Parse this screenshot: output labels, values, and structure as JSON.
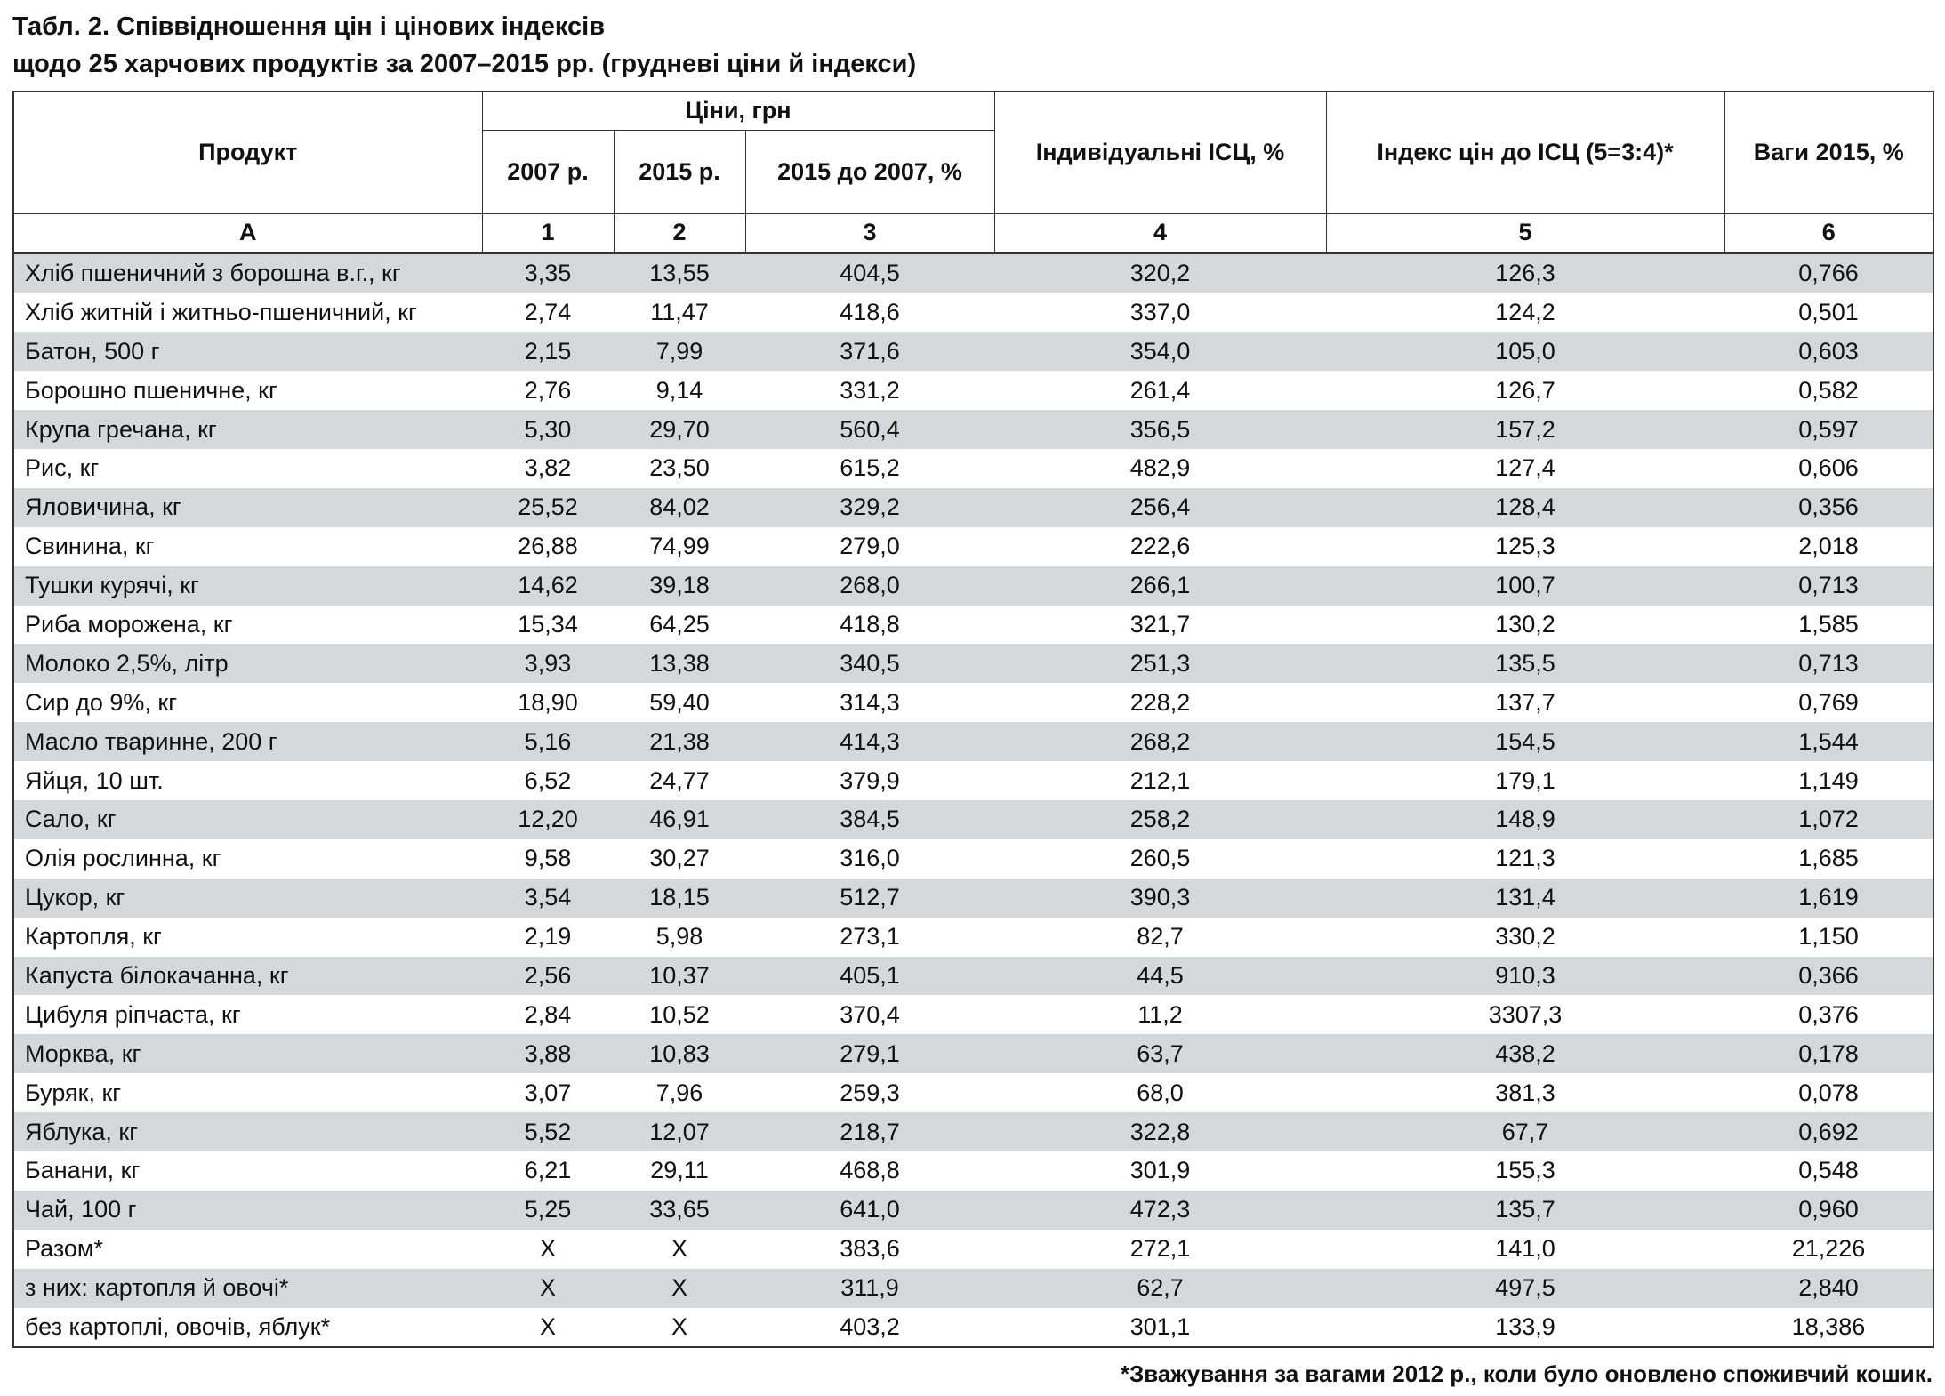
{
  "title": {
    "line1": "Табл. 2. Співвідношення цін і цінових індексів",
    "line2": "щодо 25 харчових продуктів за 2007–2015 рр. (грудневі ціни й індекси)"
  },
  "table": {
    "header": {
      "product": "Продукт",
      "prices": "Ціни, грн",
      "p2007": "2007 р.",
      "p2015": "2015 р.",
      "ratio": "2015 до 2007, %",
      "cpi": "Індивідуальні ІСЦ, %",
      "index": "Індекс цін до ІСЦ (5=3:4)*",
      "weights": "Ваги 2015, %"
    },
    "numbering": [
      "А",
      "1",
      "2",
      "3",
      "4",
      "5",
      "6"
    ],
    "rows": [
      [
        "Хліб пшеничний з борошна в.г., кг",
        "3,35",
        "13,55",
        "404,5",
        "320,2",
        "126,3",
        "0,766"
      ],
      [
        "Хліб житній і житньо-пшеничний, кг",
        "2,74",
        "11,47",
        "418,6",
        "337,0",
        "124,2",
        "0,501"
      ],
      [
        "Батон, 500 г",
        "2,15",
        "7,99",
        "371,6",
        "354,0",
        "105,0",
        "0,603"
      ],
      [
        "Борошно пшеничне, кг",
        "2,76",
        "9,14",
        "331,2",
        "261,4",
        "126,7",
        "0,582"
      ],
      [
        "Крупа гречана, кг",
        "5,30",
        "29,70",
        "560,4",
        "356,5",
        "157,2",
        "0,597"
      ],
      [
        "Рис, кг",
        "3,82",
        "23,50",
        "615,2",
        "482,9",
        "127,4",
        "0,606"
      ],
      [
        "Яловичина, кг",
        "25,52",
        "84,02",
        "329,2",
        "256,4",
        "128,4",
        "0,356"
      ],
      [
        "Свинина, кг",
        "26,88",
        "74,99",
        "279,0",
        "222,6",
        "125,3",
        "2,018"
      ],
      [
        "Тушки курячі, кг",
        "14,62",
        "39,18",
        "268,0",
        "266,1",
        "100,7",
        "0,713"
      ],
      [
        "Риба морожена, кг",
        "15,34",
        "64,25",
        "418,8",
        "321,7",
        "130,2",
        "1,585"
      ],
      [
        "Молоко 2,5%, літр",
        "3,93",
        "13,38",
        "340,5",
        "251,3",
        "135,5",
        "0,713"
      ],
      [
        "Сир до 9%, кг",
        "18,90",
        "59,40",
        "314,3",
        "228,2",
        "137,7",
        "0,769"
      ],
      [
        "Масло тваринне, 200 г",
        "5,16",
        "21,38",
        "414,3",
        "268,2",
        "154,5",
        "1,544"
      ],
      [
        "Яйця, 10 шт.",
        "6,52",
        "24,77",
        "379,9",
        "212,1",
        "179,1",
        "1,149"
      ],
      [
        "Сало, кг",
        "12,20",
        "46,91",
        "384,5",
        "258,2",
        "148,9",
        "1,072"
      ],
      [
        "Олія рослинна, кг",
        "9,58",
        "30,27",
        "316,0",
        "260,5",
        "121,3",
        "1,685"
      ],
      [
        "Цукор, кг",
        "3,54",
        "18,15",
        "512,7",
        "390,3",
        "131,4",
        "1,619"
      ],
      [
        "Картопля, кг",
        "2,19",
        "5,98",
        "273,1",
        "82,7",
        "330,2",
        "1,150"
      ],
      [
        "Капуста білокачанна, кг",
        "2,56",
        "10,37",
        "405,1",
        "44,5",
        "910,3",
        "0,366"
      ],
      [
        "Цибуля ріпчаста, кг",
        "2,84",
        "10,52",
        "370,4",
        "11,2",
        "3307,3",
        "0,376"
      ],
      [
        "Морква, кг",
        "3,88",
        "10,83",
        "279,1",
        "63,7",
        "438,2",
        "0,178"
      ],
      [
        "Буряк, кг",
        "3,07",
        "7,96",
        "259,3",
        "68,0",
        "381,3",
        "0,078"
      ],
      [
        "Яблука, кг",
        "5,52",
        "12,07",
        "218,7",
        "322,8",
        "67,7",
        "0,692"
      ],
      [
        "Банани, кг",
        "6,21",
        "29,11",
        "468,8",
        "301,9",
        "155,3",
        "0,548"
      ],
      [
        "Чай, 100 г",
        "5,25",
        "33,65",
        "641,0",
        "472,3",
        "135,7",
        "0,960"
      ],
      [
        "Разом*",
        "Х",
        "Х",
        "383,6",
        "272,1",
        "141,0",
        "21,226"
      ],
      [
        "з них: картопля й овочі*",
        "Х",
        "Х",
        "311,9",
        "62,7",
        "497,5",
        "2,840"
      ],
      [
        "без картоплі, овочів, яблук*",
        "Х",
        "Х",
        "403,2",
        "301,1",
        "133,9",
        "18,386"
      ]
    ]
  },
  "footnote": "*Зважування за вагами 2012 р., коли було оновлено споживчий кошик."
}
